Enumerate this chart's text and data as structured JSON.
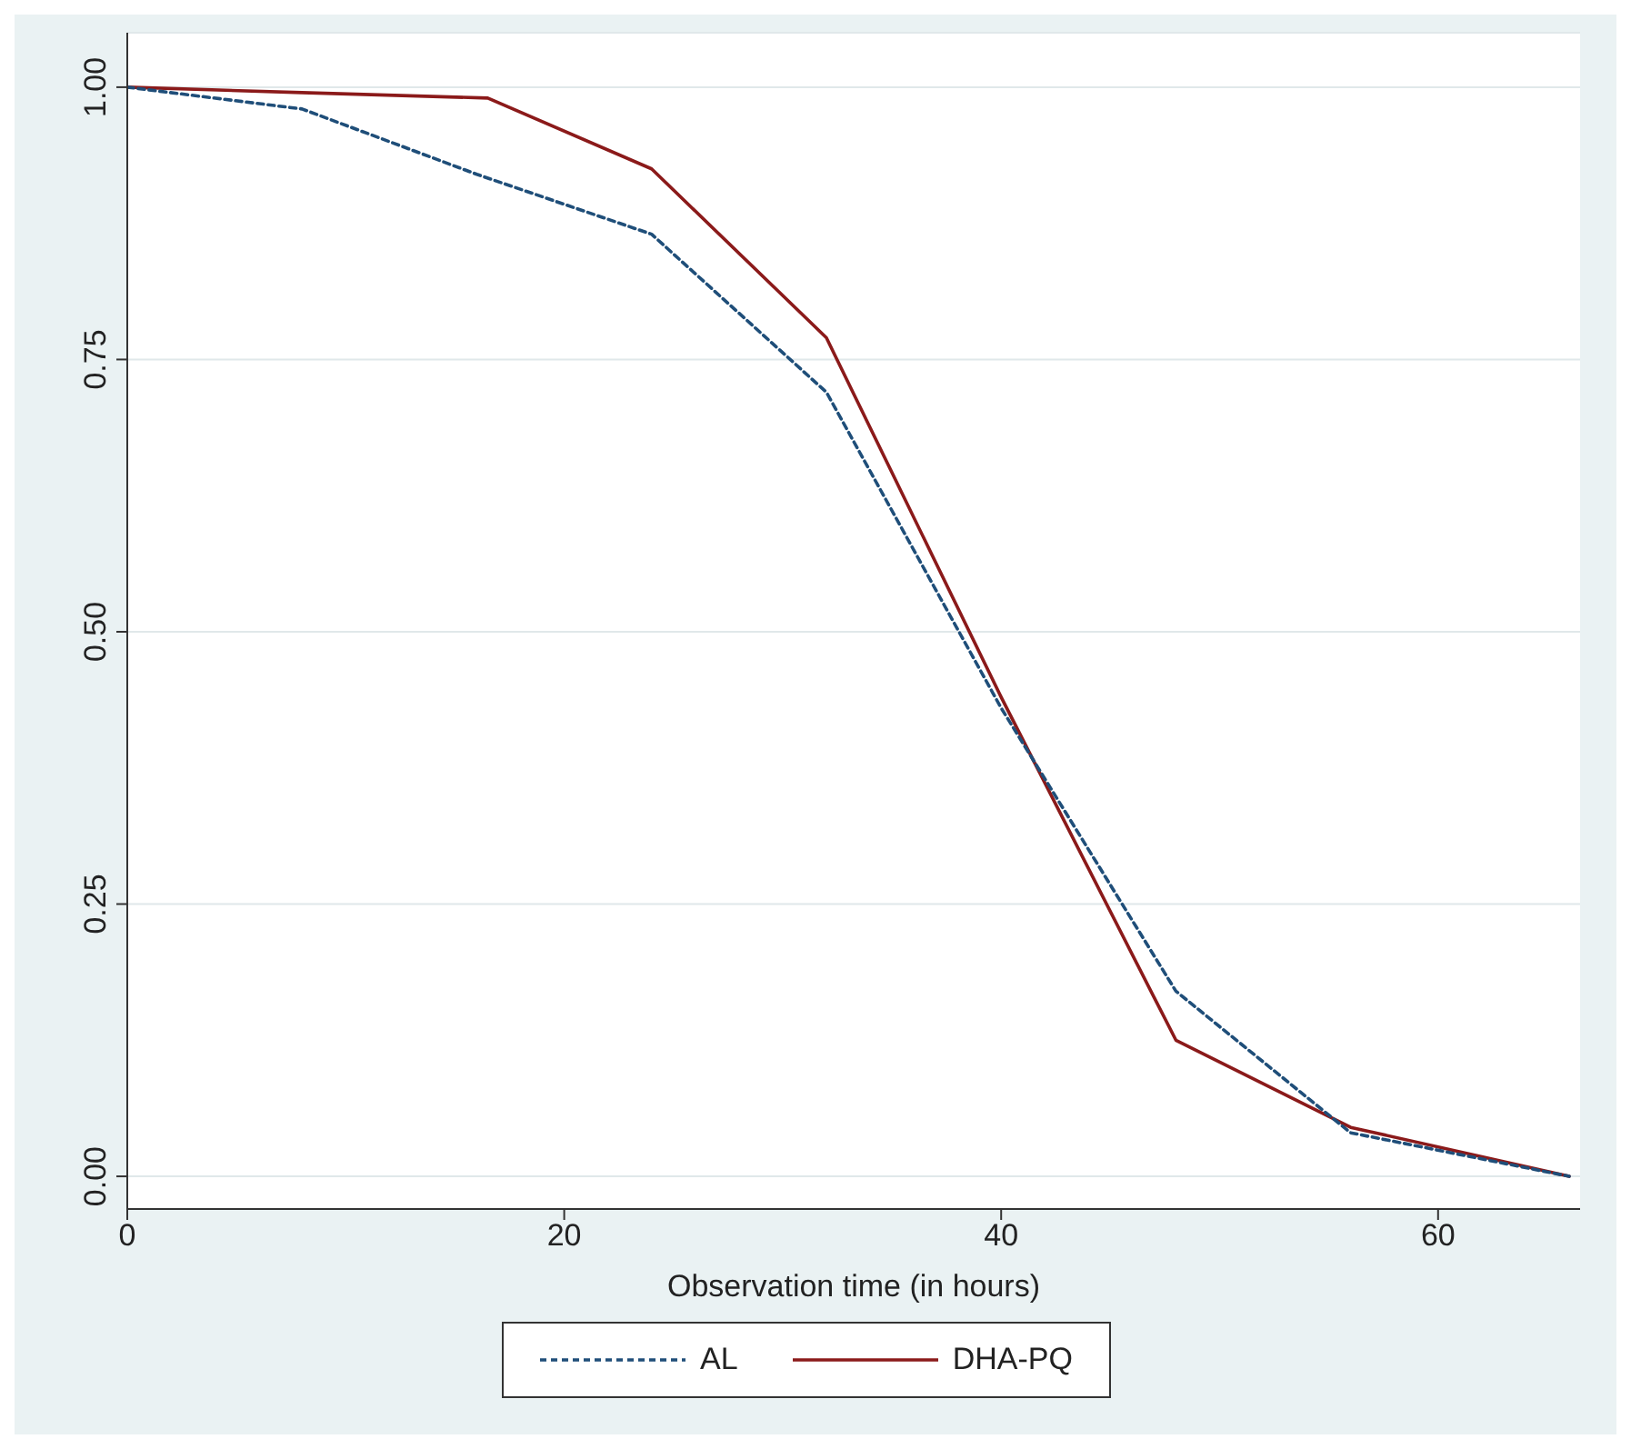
{
  "chart_data": {
    "type": "line",
    "xlabel": "Observation time (in hours)",
    "series": [
      {
        "name": "AL",
        "color": "#1f4e79",
        "line_style": "dashed",
        "x": [
          0,
          8,
          16,
          24,
          32,
          40,
          48,
          56,
          66
        ],
        "values": [
          1.0,
          0.98,
          0.92,
          0.865,
          0.72,
          0.43,
          0.17,
          0.04,
          0.0
        ]
      },
      {
        "name": "DHA-PQ",
        "color": "#8b1a1a",
        "line_style": "solid",
        "x": [
          0,
          8,
          16.5,
          24,
          32,
          40,
          48,
          56,
          66
        ],
        "values": [
          1.0,
          0.995,
          0.99,
          0.925,
          0.77,
          0.44,
          0.125,
          0.045,
          0.0
        ]
      }
    ],
    "xlim": [
      0,
      66.5
    ],
    "xticks": [
      0,
      20,
      40,
      60
    ],
    "ylim": [
      -0.03,
      1.05
    ],
    "yticks": [
      {
        "value": 0,
        "label": "0.00"
      },
      {
        "value": 0.25,
        "label": "0.25"
      },
      {
        "value": 0.5,
        "label": "0.50"
      },
      {
        "value": 0.75,
        "label": "0.75"
      },
      {
        "value": 1,
        "label": "1.00"
      }
    ],
    "grid": "y",
    "legend": "bottom",
    "marker": "none"
  }
}
